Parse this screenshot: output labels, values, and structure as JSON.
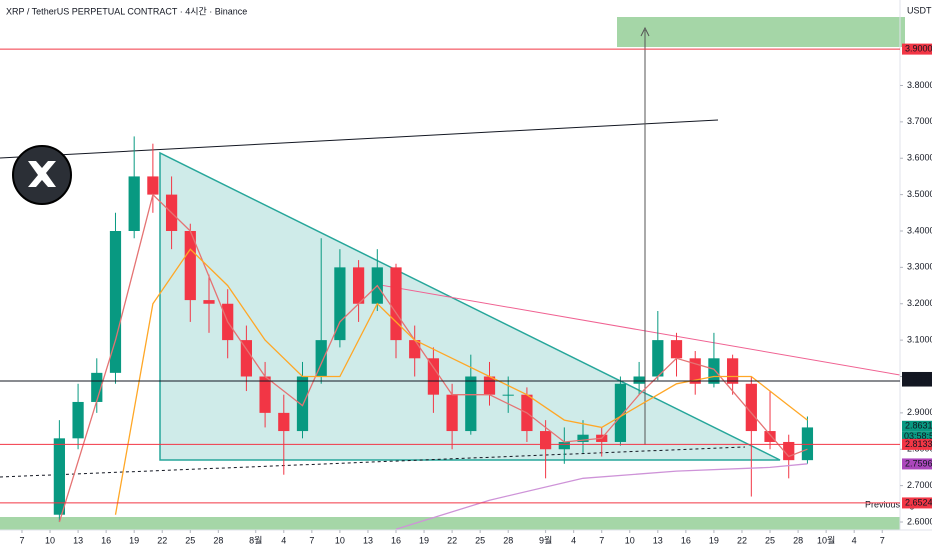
{
  "chart_data": {
    "type": "candlestick",
    "title": "XRP / TetherUS PERPETUAL CONTRACT · 4시간 · Binance",
    "currency": "USDT",
    "up_color": "#089981",
    "down_color": "#f23645",
    "grid": false,
    "xlim": [
      -2.35,
      93.9
    ],
    "ylim": [
      2.578,
      4.035
    ],
    "xticks": [
      {
        "value": 0,
        "label": "7"
      },
      {
        "value": 3,
        "label": "10"
      },
      {
        "value": 6,
        "label": "13"
      },
      {
        "value": 9,
        "label": "16"
      },
      {
        "value": 12,
        "label": "19"
      },
      {
        "value": 15,
        "label": "22"
      },
      {
        "value": 18,
        "label": "25"
      },
      {
        "value": 21,
        "label": "28"
      },
      {
        "value": 25,
        "label": "8월"
      },
      {
        "value": 28,
        "label": "4"
      },
      {
        "value": 31,
        "label": "7"
      },
      {
        "value": 34,
        "label": "10"
      },
      {
        "value": 37,
        "label": "13"
      },
      {
        "value": 40,
        "label": "16"
      },
      {
        "value": 43,
        "label": "19"
      },
      {
        "value": 46,
        "label": "22"
      },
      {
        "value": 49,
        "label": "25"
      },
      {
        "value": 52,
        "label": "28"
      },
      {
        "value": 56,
        "label": "9월"
      },
      {
        "value": 59,
        "label": "4"
      },
      {
        "value": 62,
        "label": "7"
      },
      {
        "value": 65,
        "label": "10"
      },
      {
        "value": 68,
        "label": "13"
      },
      {
        "value": 71,
        "label": "16"
      },
      {
        "value": 74,
        "label": "19"
      },
      {
        "value": 77,
        "label": "22"
      },
      {
        "value": 80,
        "label": "25"
      },
      {
        "value": 83,
        "label": "28"
      },
      {
        "value": 86,
        "label": "10월"
      },
      {
        "value": 89,
        "label": "4"
      },
      {
        "value": 92,
        "label": "7"
      }
    ],
    "yticks": [
      {
        "value": 2.6,
        "label": "2.6000"
      },
      {
        "value": 2.7,
        "label": "2.7000"
      },
      {
        "value": 2.8,
        "label": "2.8000"
      },
      {
        "value": 2.9,
        "label": "2.9000"
      },
      {
        "value": 3.0,
        "label": "3.0000"
      },
      {
        "value": 3.1,
        "label": "3.1000"
      },
      {
        "value": 3.2,
        "label": "3.2000"
      },
      {
        "value": 3.3,
        "label": "3.3000"
      },
      {
        "value": 3.4,
        "label": "3.4000"
      },
      {
        "value": 3.5,
        "label": "3.5000"
      },
      {
        "value": 3.6,
        "label": "3.6000"
      },
      {
        "value": 3.7,
        "label": "3.7000"
      },
      {
        "value": 3.8,
        "label": "3.8000"
      }
    ],
    "x": [
      4,
      6,
      8,
      10,
      12,
      14,
      16,
      18,
      20,
      22,
      24,
      26,
      28,
      30,
      32,
      34,
      36,
      38,
      40,
      42,
      44,
      46,
      48,
      50,
      52,
      54,
      56,
      58,
      60,
      62,
      64,
      66,
      68,
      70,
      72,
      74,
      76,
      78,
      80,
      82,
      84
    ],
    "open": [
      2.62,
      2.83,
      2.93,
      3.01,
      3.4,
      3.55,
      3.5,
      3.4,
      3.21,
      3.2,
      3.1,
      3.0,
      2.9,
      2.85,
      3.0,
      3.1,
      3.3,
      3.2,
      3.3,
      3.1,
      3.05,
      2.95,
      2.85,
      3.0,
      2.95,
      2.95,
      2.85,
      2.8,
      2.82,
      2.84,
      2.82,
      2.98,
      3.0,
      3.1,
      3.05,
      2.98,
      3.05,
      2.98,
      2.85,
      2.82,
      2.77
    ],
    "high": [
      2.88,
      2.98,
      3.05,
      3.45,
      3.66,
      3.64,
      3.55,
      3.42,
      3.28,
      3.24,
      3.14,
      3.04,
      2.95,
      3.04,
      3.38,
      3.35,
      3.32,
      3.35,
      3.31,
      3.14,
      3.08,
      2.98,
      3.06,
      3.04,
      3.0,
      2.97,
      2.88,
      2.86,
      2.88,
      2.86,
      3.0,
      3.04,
      3.18,
      3.12,
      3.07,
      3.12,
      3.06,
      3.0,
      2.96,
      2.84,
      2.89
    ],
    "low": [
      2.6,
      2.8,
      2.9,
      2.98,
      3.38,
      3.45,
      3.35,
      3.15,
      3.12,
      3.05,
      2.96,
      2.86,
      2.73,
      2.83,
      2.98,
      3.08,
      3.15,
      3.18,
      3.05,
      3.0,
      2.9,
      2.8,
      2.84,
      2.92,
      2.9,
      2.82,
      2.72,
      2.76,
      2.79,
      2.78,
      2.81,
      2.95,
      2.99,
      3.0,
      2.95,
      2.97,
      2.95,
      2.67,
      2.8,
      2.72,
      2.76
    ],
    "close": [
      2.83,
      2.93,
      3.01,
      3.4,
      3.55,
      3.5,
      3.4,
      3.21,
      3.2,
      3.1,
      3.0,
      2.9,
      2.85,
      3.0,
      3.1,
      3.3,
      3.2,
      3.3,
      3.1,
      3.05,
      2.95,
      2.85,
      3.0,
      2.95,
      2.95,
      2.85,
      2.8,
      2.82,
      2.84,
      2.82,
      2.98,
      3.0,
      3.1,
      3.05,
      2.98,
      3.05,
      2.98,
      2.85,
      2.82,
      2.77,
      2.86
    ],
    "overlays": [
      {
        "color": "#e57373",
        "x": [
          4,
          10,
          14,
          18,
          22,
          26,
          30,
          34,
          38,
          42,
          46,
          50,
          54,
          58,
          62,
          66,
          70,
          74,
          78,
          82,
          84
        ],
        "values": [
          2.6,
          3.1,
          3.5,
          3.4,
          3.15,
          3.0,
          2.92,
          3.15,
          3.25,
          3.1,
          2.95,
          2.95,
          2.9,
          2.82,
          2.83,
          2.95,
          3.05,
          3.02,
          2.9,
          2.78,
          2.8
        ]
      },
      {
        "color": "#ffa726",
        "x": [
          10,
          14,
          18,
          22,
          26,
          30,
          34,
          38,
          42,
          46,
          50,
          54,
          58,
          62,
          66,
          70,
          74,
          78,
          82,
          84
        ],
        "values": [
          2.62,
          3.2,
          3.35,
          3.25,
          3.1,
          3.0,
          3.0,
          3.2,
          3.1,
          3.05,
          3.0,
          2.95,
          2.88,
          2.86,
          2.92,
          2.98,
          3.0,
          3.0,
          2.92,
          2.88
        ]
      },
      {
        "color": "#ce93d8",
        "x": [
          40,
          50,
          60,
          70,
          80,
          84
        ],
        "values": [
          2.58,
          2.66,
          2.72,
          2.74,
          2.75,
          2.76
        ]
      }
    ],
    "levels": [
      {
        "value": 3.9,
        "label": "3.9000",
        "color": "#f23645",
        "line": true
      },
      {
        "value": 2.9973,
        "label": "2.9973",
        "color": "#131722",
        "line": false
      },
      {
        "value": 2.9877,
        "label": "2.9877",
        "color": "#131722",
        "line": false
      },
      {
        "value": 2.9875,
        "label": "2.9875",
        "color": "#131722",
        "line": true
      },
      {
        "value": 2.8631,
        "label": "2.8631",
        "color": "#089981",
        "line": false
      },
      {
        "value": 2.8133,
        "label": "2.8133",
        "color": "#f23645",
        "line": true
      },
      {
        "value": 2.7596,
        "label": "2.7596",
        "color": "#ab47bc",
        "line": false
      },
      {
        "value": 2.6524,
        "label": "2.6524",
        "color": "#f23645",
        "line": true
      }
    ],
    "countdown": "03:58:55",
    "annotation": "Previous high"
  }
}
